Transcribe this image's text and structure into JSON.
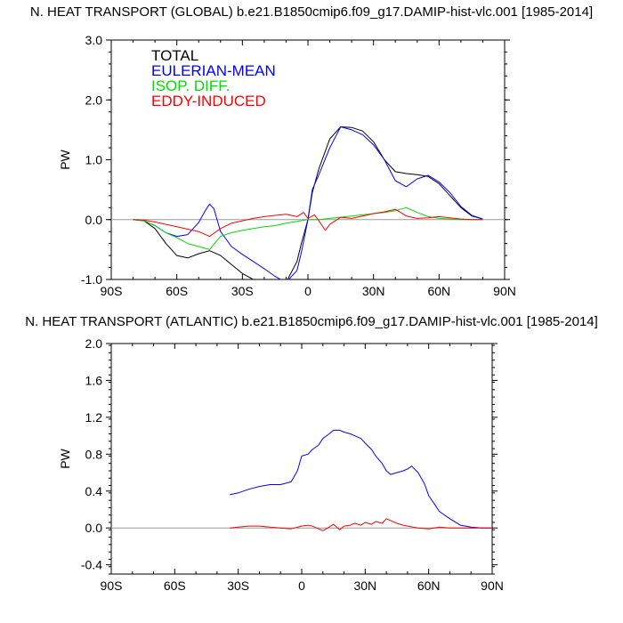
{
  "chart_data": [
    {
      "type": "line",
      "title": "N. HEAT TRANSPORT (GLOBAL) b.e21.B1850cmip6.f09_g17.DAMIP-hist-vlc.001 [1985-2014]",
      "xlabel": "",
      "ylabel": "PW",
      "xlim": [
        -90,
        90
      ],
      "ylim": [
        -1.0,
        3.0
      ],
      "xticks": [
        {
          "value": -90,
          "label": "90S"
        },
        {
          "value": -60,
          "label": "60S"
        },
        {
          "value": -30,
          "label": "30S"
        },
        {
          "value": 0,
          "label": "0"
        },
        {
          "value": 30,
          "label": "30N"
        },
        {
          "value": 60,
          "label": "60N"
        },
        {
          "value": 90,
          "label": "90N"
        }
      ],
      "yticks": [
        {
          "value": -1.0,
          "label": "-1.0"
        },
        {
          "value": 0.0,
          "label": "0.0"
        },
        {
          "value": 1.0,
          "label": "1.0"
        },
        {
          "value": 2.0,
          "label": "2.0"
        },
        {
          "value": 3.0,
          "label": "3.0"
        }
      ],
      "zero_line": true,
      "legend_position": "top-left",
      "series": [
        {
          "name": "TOTAL",
          "color": "#000000",
          "x": [
            -80,
            -75,
            -70,
            -65,
            -60,
            -55,
            -50,
            -45,
            -40,
            -35,
            -30,
            -25,
            -20,
            -17,
            -15,
            -10,
            -5,
            -3,
            0,
            2,
            5,
            10,
            15,
            20,
            25,
            30,
            35,
            40,
            45,
            50,
            55,
            60,
            65,
            70,
            75,
            80
          ],
          "y": [
            0,
            -0.02,
            -0.15,
            -0.4,
            -0.6,
            -0.64,
            -0.57,
            -0.52,
            -0.6,
            -0.75,
            -0.9,
            -1.0,
            -1.08,
            -1.13,
            -1.13,
            -1.05,
            -0.7,
            -0.4,
            0.0,
            0.45,
            0.85,
            1.35,
            1.55,
            1.54,
            1.48,
            1.3,
            1.0,
            0.8,
            0.77,
            0.75,
            0.72,
            0.6,
            0.4,
            0.2,
            0.06,
            0.01
          ]
        },
        {
          "name": "EULERIAN-MEAN",
          "color": "#0000ff",
          "x": [
            -80,
            -75,
            -70,
            -65,
            -60,
            -55,
            -50,
            -47,
            -45,
            -43,
            -40,
            -35,
            -30,
            -25,
            -20,
            -15,
            -10,
            -5,
            -3,
            0,
            2,
            5,
            10,
            15,
            20,
            25,
            30,
            35,
            40,
            45,
            50,
            55,
            60,
            65,
            70,
            75,
            80
          ],
          "y": [
            0,
            -0.02,
            -0.1,
            -0.22,
            -0.28,
            -0.25,
            -0.05,
            0.15,
            0.26,
            0.18,
            -0.2,
            -0.45,
            -0.58,
            -0.7,
            -0.82,
            -0.95,
            -1.05,
            -0.85,
            -0.55,
            0.0,
            0.5,
            0.75,
            1.2,
            1.55,
            1.5,
            1.42,
            1.25,
            1.0,
            0.65,
            0.55,
            0.68,
            0.74,
            0.63,
            0.45,
            0.22,
            0.07,
            0.01
          ]
        },
        {
          "name": "ISOP. DIFF.",
          "color": "#00dd00",
          "x": [
            -80,
            -75,
            -70,
            -65,
            -60,
            -55,
            -50,
            -45,
            -40,
            -35,
            -30,
            -25,
            -20,
            -15,
            -10,
            -5,
            0,
            5,
            10,
            15,
            20,
            25,
            30,
            35,
            40,
            45,
            50,
            55,
            60,
            65,
            70,
            75,
            80
          ],
          "y": [
            0,
            -0.02,
            -0.1,
            -0.22,
            -0.3,
            -0.4,
            -0.45,
            -0.5,
            -0.28,
            -0.22,
            -0.18,
            -0.15,
            -0.12,
            -0.1,
            -0.06,
            -0.03,
            0.0,
            0.0,
            0.02,
            0.04,
            0.06,
            0.08,
            0.1,
            0.12,
            0.15,
            0.2,
            0.12,
            0.05,
            0.02,
            0.01,
            0.0,
            0.0,
            0.0
          ]
        },
        {
          "name": "EDDY-INDUCED",
          "color": "#ff0000",
          "x": [
            -80,
            -75,
            -70,
            -65,
            -60,
            -55,
            -50,
            -45,
            -40,
            -35,
            -30,
            -25,
            -20,
            -15,
            -10,
            -5,
            -2,
            0,
            3,
            5,
            8,
            10,
            15,
            20,
            25,
            30,
            35,
            40,
            42,
            45,
            50,
            55,
            60,
            65,
            70,
            75,
            80
          ],
          "y": [
            0,
            -0.01,
            -0.04,
            -0.08,
            -0.12,
            -0.16,
            -0.2,
            -0.28,
            -0.15,
            -0.06,
            -0.02,
            0.02,
            0.05,
            0.07,
            0.09,
            0.05,
            0.12,
            0.02,
            0.08,
            -0.02,
            -0.18,
            -0.08,
            0.04,
            0.02,
            0.06,
            0.1,
            0.13,
            0.17,
            0.13,
            0.06,
            0.02,
            0.03,
            0.05,
            0.03,
            0.01,
            0.0,
            0.0
          ]
        }
      ]
    },
    {
      "type": "line",
      "title": "N. HEAT TRANSPORT (ATLANTIC) b.e21.B1850cmip6.f09_g17.DAMIP-hist-vlc.001 [1985-2014]",
      "xlabel": "",
      "ylabel": "PW",
      "xlim": [
        -90,
        90
      ],
      "ylim": [
        -0.5,
        2.0
      ],
      "xticks": [
        {
          "value": -90,
          "label": "90S"
        },
        {
          "value": -60,
          "label": "60S"
        },
        {
          "value": -30,
          "label": "30S"
        },
        {
          "value": 0,
          "label": "0"
        },
        {
          "value": 30,
          "label": "30N"
        },
        {
          "value": 60,
          "label": "60N"
        },
        {
          "value": 90,
          "label": "90N"
        }
      ],
      "yticks": [
        {
          "value": -0.4,
          "label": "-0.4"
        },
        {
          "value": 0.0,
          "label": "0.0"
        },
        {
          "value": 0.4,
          "label": "0.4"
        },
        {
          "value": 0.8,
          "label": "0.8"
        },
        {
          "value": 1.2,
          "label": "1.2"
        },
        {
          "value": 1.6,
          "label": "1.6"
        },
        {
          "value": 2.0,
          "label": "2.0"
        }
      ],
      "zero_line": true,
      "series": [
        {
          "color": "#0000ff",
          "x": [
            -34,
            -30,
            -25,
            -20,
            -15,
            -10,
            -5,
            -2,
            0,
            3,
            5,
            8,
            10,
            13,
            15,
            18,
            20,
            23,
            25,
            28,
            30,
            33,
            35,
            38,
            40,
            42,
            45,
            48,
            50,
            52,
            55,
            58,
            60,
            63,
            65,
            70,
            75,
            80,
            85,
            90
          ],
          "y": [
            0.36,
            0.38,
            0.42,
            0.45,
            0.47,
            0.47,
            0.5,
            0.62,
            0.78,
            0.8,
            0.85,
            0.9,
            0.97,
            1.02,
            1.06,
            1.06,
            1.04,
            1.02,
            1.0,
            0.97,
            0.92,
            0.85,
            0.78,
            0.7,
            0.62,
            0.58,
            0.6,
            0.62,
            0.64,
            0.67,
            0.6,
            0.48,
            0.35,
            0.25,
            0.18,
            0.1,
            0.03,
            0.01,
            0.0,
            0.0
          ]
        },
        {
          "color": "#ff0000",
          "x": [
            -34,
            -30,
            -25,
            -20,
            -15,
            -10,
            -5,
            0,
            3,
            5,
            8,
            10,
            13,
            15,
            18,
            20,
            23,
            25,
            28,
            30,
            33,
            35,
            38,
            40,
            42,
            45,
            48,
            50,
            55,
            60,
            65,
            70,
            75,
            80,
            85,
            90
          ],
          "y": [
            0.0,
            0.01,
            0.02,
            0.02,
            0.01,
            0.0,
            -0.01,
            0.02,
            0.03,
            0.02,
            -0.01,
            -0.03,
            0.01,
            0.04,
            -0.02,
            0.02,
            0.03,
            0.05,
            0.03,
            0.06,
            0.04,
            0.07,
            0.05,
            0.1,
            0.08,
            0.05,
            0.03,
            0.02,
            0.0,
            -0.01,
            0.01,
            0.0,
            0.0,
            0.0,
            0.0,
            0.0
          ]
        }
      ]
    }
  ]
}
